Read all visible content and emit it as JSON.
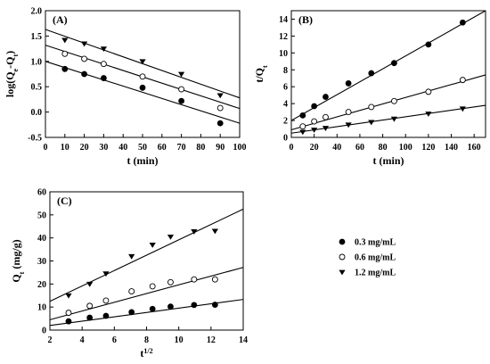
{
  "chart_data": [
    {
      "type": "scatter",
      "panel": "(A)",
      "xlabel": "t (min)",
      "ylabel_parts": [
        "log(Q",
        "e",
        "-Q",
        "t",
        ")"
      ],
      "xlim": [
        0,
        100
      ],
      "ylim": [
        -0.5,
        2.0
      ],
      "xticks": [
        0,
        10,
        20,
        30,
        40,
        50,
        60,
        70,
        80,
        90,
        100
      ],
      "yticks": [
        -0.5,
        0.0,
        0.5,
        1.0,
        1.5,
        2.0
      ],
      "ytick_labels": [
        "-0.5",
        "0.0",
        "0.5",
        "1.0",
        "1.5",
        "2.0"
      ],
      "series": [
        {
          "marker": "circle-filled",
          "x": [
            10,
            20,
            30,
            50,
            70,
            90
          ],
          "y": [
            0.85,
            0.75,
            0.67,
            0.48,
            0.22,
            -0.22
          ],
          "fit": [
            [
              0,
              1.0
            ],
            [
              100,
              -0.22
            ]
          ]
        },
        {
          "marker": "circle-open",
          "x": [
            10,
            20,
            30,
            50,
            70,
            90
          ],
          "y": [
            1.15,
            1.05,
            0.95,
            0.7,
            0.45,
            0.08
          ],
          "fit": [
            [
              0,
              1.32
            ],
            [
              100,
              0.07
            ]
          ]
        },
        {
          "marker": "triangle-down",
          "x": [
            10,
            20,
            30,
            50,
            70,
            90
          ],
          "y": [
            1.42,
            1.35,
            1.25,
            1.0,
            0.75,
            0.33
          ],
          "fit": [
            [
              0,
              1.63
            ],
            [
              100,
              0.28
            ]
          ]
        }
      ]
    },
    {
      "type": "scatter",
      "panel": "(B)",
      "xlabel": "t (min)",
      "ylabel_parts": [
        "t/Q",
        "t"
      ],
      "xlim": [
        0,
        170
      ],
      "ylim": [
        0,
        15
      ],
      "xticks": [
        0,
        20,
        40,
        60,
        80,
        100,
        120,
        140,
        160
      ],
      "yticks": [
        0,
        2,
        4,
        6,
        8,
        10,
        12,
        14
      ],
      "ytick_labels": [
        "0",
        "2",
        "4",
        "6",
        "8",
        "10",
        "12",
        "14"
      ],
      "series": [
        {
          "marker": "circle-filled",
          "x": [
            10,
            20,
            30,
            50,
            70,
            90,
            120,
            150
          ],
          "y": [
            2.6,
            3.7,
            4.8,
            6.4,
            7.6,
            8.8,
            11.0,
            13.6
          ],
          "fit": [
            [
              0,
              2.0
            ],
            [
              170,
              15.0
            ]
          ]
        },
        {
          "marker": "circle-open",
          "x": [
            10,
            20,
            30,
            50,
            70,
            90,
            120,
            150
          ],
          "y": [
            1.3,
            1.9,
            2.4,
            3.0,
            3.6,
            4.3,
            5.4,
            6.8
          ],
          "fit": [
            [
              0,
              0.9
            ],
            [
              170,
              7.4
            ]
          ]
        },
        {
          "marker": "triangle-down",
          "x": [
            10,
            20,
            30,
            50,
            70,
            90,
            120,
            150
          ],
          "y": [
            0.65,
            0.9,
            1.1,
            1.5,
            1.8,
            2.2,
            2.8,
            3.4
          ],
          "fit": [
            [
              0,
              0.5
            ],
            [
              170,
              3.8
            ]
          ]
        }
      ]
    },
    {
      "type": "scatter",
      "panel": "(C)",
      "xlabel_parts": [
        "t",
        "1/2"
      ],
      "ylabel_parts": [
        "Q",
        "t",
        "  (mg/g)"
      ],
      "xlim": [
        2,
        14
      ],
      "ylim": [
        0,
        60
      ],
      "xticks": [
        2,
        4,
        6,
        8,
        10,
        12,
        14
      ],
      "yticks": [
        0,
        10,
        20,
        30,
        40,
        50,
        60
      ],
      "ytick_labels": [
        "0",
        "10",
        "20",
        "30",
        "40",
        "50",
        "60"
      ],
      "series": [
        {
          "marker": "circle-filled",
          "x": [
            3.16,
            4.47,
            5.48,
            7.07,
            8.37,
            9.49,
            10.95,
            12.25
          ],
          "y": [
            3.8,
            5.4,
            6.2,
            7.8,
            9.2,
            10.2,
            10.9,
            11.0
          ],
          "fit": [
            [
              2,
              2.0
            ],
            [
              14,
              13.3
            ]
          ]
        },
        {
          "marker": "circle-open",
          "x": [
            3.16,
            4.47,
            5.48,
            7.07,
            8.37,
            9.49,
            10.95,
            12.25
          ],
          "y": [
            7.5,
            10.5,
            12.8,
            16.8,
            19.0,
            20.8,
            22.0,
            22.0
          ],
          "fit": [
            [
              2,
              4.5
            ],
            [
              14,
              27.2
            ]
          ]
        },
        {
          "marker": "triangle-down",
          "x": [
            3.16,
            4.47,
            5.48,
            7.07,
            8.37,
            9.49,
            10.95,
            12.25
          ],
          "y": [
            15.0,
            20.0,
            24.5,
            32.0,
            37.0,
            40.5,
            42.8,
            43.0
          ],
          "fit": [
            [
              2,
              12.5
            ],
            [
              14,
              52.5
            ]
          ]
        }
      ]
    }
  ],
  "legend": {
    "entries": [
      {
        "marker": "circle-filled",
        "label": "0.3 mg/mL"
      },
      {
        "marker": "circle-open",
        "label": "0.6 mg/mL"
      },
      {
        "marker": "triangle-down",
        "label": "1.2 mg/mL"
      }
    ]
  }
}
